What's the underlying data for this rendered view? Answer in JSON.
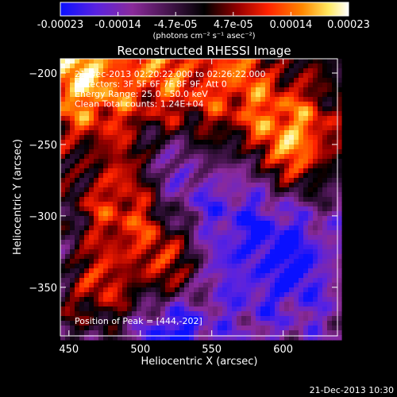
{
  "colorbar": {
    "ticks": [
      "-0.00023",
      "-0.00014",
      "-4.7e-05",
      "4.7e-05",
      "0.00014",
      "0.00023"
    ],
    "unit_label": "(photons cm⁻² s⁻¹ asec⁻²)",
    "colors": [
      "#0a10ff",
      "#5a22e0",
      "#8a2a9a",
      "#000000",
      "#9a0000",
      "#ff2200",
      "#ff8800",
      "#ffe860",
      "#ffffff"
    ]
  },
  "chart_data": {
    "type": "heatmap",
    "title": "Reconstructed RHESSI Image",
    "xlabel": "Heliocentric X (arcsec)",
    "ylabel": "Heliocentric Y (arcsec)",
    "xlim": [
      444,
      638
    ],
    "ylim": [
      -384,
      -190
    ],
    "xticks": [
      450,
      500,
      550,
      600
    ],
    "yticks": [
      -200,
      -250,
      -300,
      -350
    ],
    "annotations": [
      "21-Dec-2013 02:20:22.000 to 02:26:22.000",
      "Detectors: 3F 5F 6F 7F 8F 9F, Att 0",
      "Energy Range: 25.0 - 50.0 keV",
      "Clean     Total counts: 1.24E+04"
    ],
    "peak_label": "Position of Peak = [444,-202]",
    "peak": [
      444,
      -202
    ]
  },
  "footer": {
    "timestamp": "21-Dec-2013 10:30"
  }
}
